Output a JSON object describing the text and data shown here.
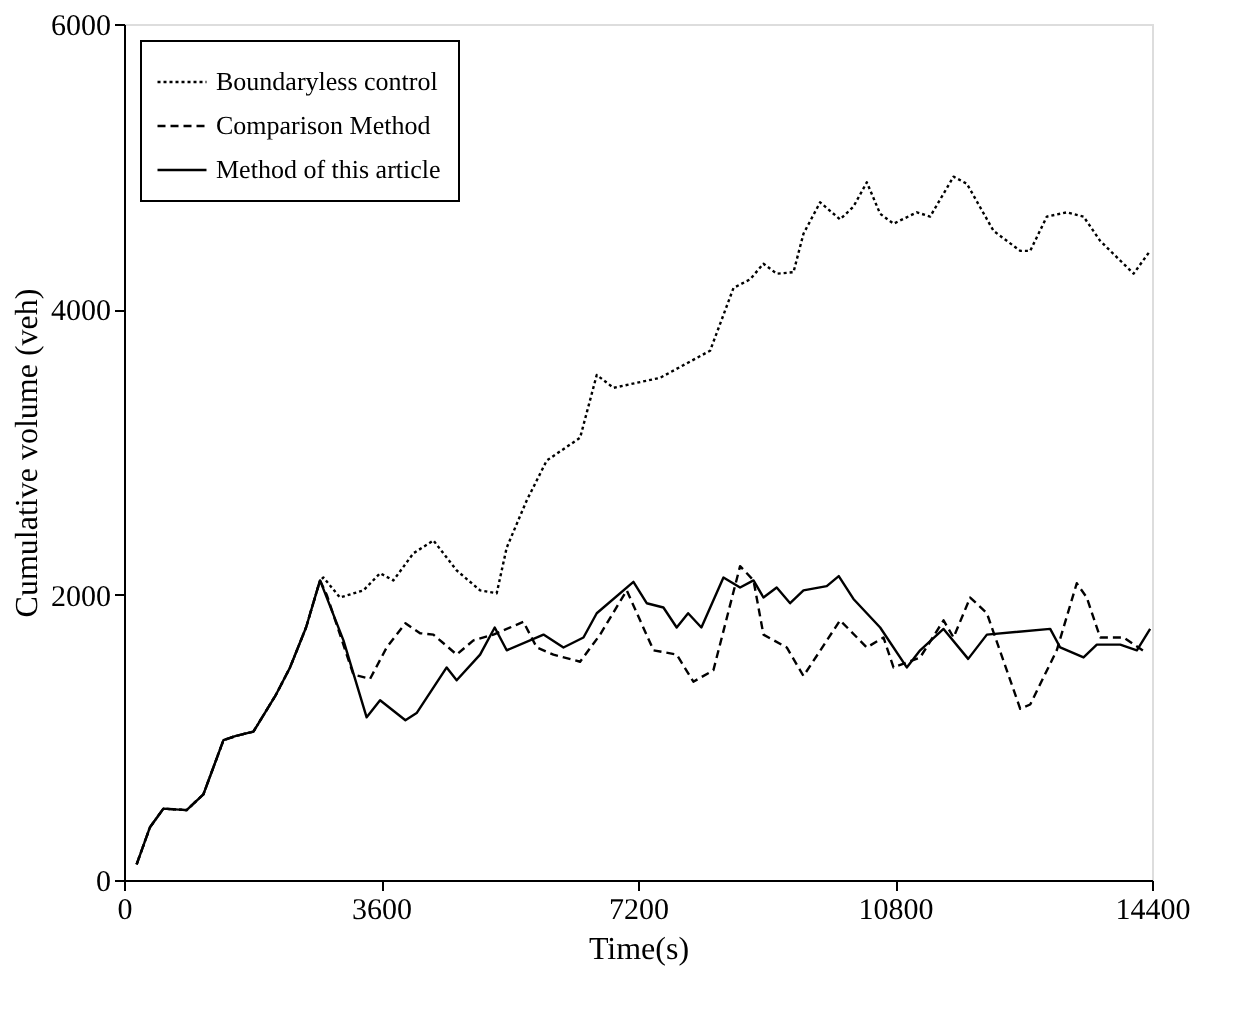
{
  "chart_data": {
    "type": "line",
    "xlabel": "Time(s)",
    "ylabel": "Cumulative volume (veh)",
    "xlim": [
      0,
      14400
    ],
    "xticks": [
      0,
      3600,
      7200,
      10800,
      14400
    ],
    "ylim": [
      0,
      6000
    ],
    "yticks": [
      0,
      2000,
      4000,
      6000
    ],
    "grid": false,
    "legend": "top left",
    "marker": "none",
    "series": [
      {
        "name": "Boundaryless control",
        "color": "#000000",
        "line_style": "dotted",
        "x": [
          177,
          364,
          552,
          877,
          1112,
          1393,
          1569,
          1813,
          2130,
          2326,
          2550,
          2746,
          2794,
          3026,
          3354,
          3587,
          3774,
          4054,
          4334,
          4660,
          4988,
          5221,
          5361,
          5641,
          5921,
          6389,
          6622,
          6856,
          7510,
          8210,
          8538,
          8770,
          8957,
          9143,
          9378,
          9518,
          9751,
          10031,
          10218,
          10405,
          10592,
          10779,
          11106,
          11292,
          11620,
          11807,
          12180,
          12554,
          12694,
          12927,
          13206,
          13441,
          13674,
          14142,
          14374
        ],
        "values": [
          110,
          370,
          500,
          490,
          600,
          980,
          1010,
          1040,
          1300,
          1490,
          1770,
          2100,
          2120,
          1980,
          2030,
          2150,
          2100,
          2290,
          2380,
          2170,
          2030,
          2010,
          2330,
          2660,
          2940,
          3100,
          3540,
          3450,
          3520,
          3710,
          4150,
          4210,
          4320,
          4250,
          4260,
          4530,
          4750,
          4630,
          4720,
          4890,
          4670,
          4600,
          4680,
          4650,
          4930,
          4880,
          4550,
          4410,
          4410,
          4650,
          4680,
          4650,
          4480,
          4250,
          4410
        ]
      },
      {
        "name": "Comparison Method",
        "color": "#000000",
        "line_style": "dashed",
        "x": [
          177,
          364,
          552,
          877,
          1112,
          1393,
          1569,
          1813,
          2130,
          2326,
          2550,
          2746,
          2839,
          3213,
          3447,
          3680,
          3942,
          4147,
          4334,
          4660,
          4895,
          5175,
          5595,
          5781,
          6015,
          6389,
          6669,
          7042,
          7417,
          7742,
          7976,
          8256,
          8630,
          8818,
          8957,
          9284,
          9518,
          10031,
          10405,
          10639,
          10779,
          11152,
          11480,
          11620,
          11853,
          12087,
          12554,
          12694,
          13066,
          13346,
          13486,
          13674,
          14001,
          14327
        ],
        "values": [
          110,
          370,
          500,
          490,
          600,
          980,
          1010,
          1040,
          1300,
          1490,
          1770,
          2100,
          2000,
          1440,
          1410,
          1630,
          1800,
          1730,
          1720,
          1580,
          1680,
          1720,
          1810,
          1630,
          1580,
          1530,
          1720,
          2030,
          1610,
          1580,
          1390,
          1470,
          2200,
          2100,
          1720,
          1630,
          1430,
          1820,
          1630,
          1700,
          1490,
          1560,
          1820,
          1700,
          1980,
          1870,
          1200,
          1230,
          1610,
          2080,
          1980,
          1700,
          1700,
          1590
        ]
      },
      {
        "name": "Method of this article",
        "color": "#000000",
        "line_style": "solid",
        "x": [
          177,
          364,
          552,
          877,
          1112,
          1393,
          1569,
          1813,
          2130,
          2326,
          2550,
          2746,
          3074,
          3399,
          3587,
          3942,
          4099,
          4520,
          4660,
          4988,
          5193,
          5361,
          5876,
          6156,
          6436,
          6622,
          7136,
          7322,
          7556,
          7742,
          7902,
          8088,
          8397,
          8630,
          8818,
          8957,
          9143,
          9331,
          9518,
          9844,
          10012,
          10218,
          10592,
          10965,
          11152,
          11480,
          11825,
          12087,
          12974,
          13114,
          13441,
          13627,
          13955,
          14188,
          14374
        ],
        "values": [
          110,
          370,
          500,
          490,
          600,
          980,
          1010,
          1040,
          1300,
          1490,
          1770,
          2100,
          1680,
          1140,
          1260,
          1120,
          1170,
          1490,
          1400,
          1580,
          1770,
          1610,
          1720,
          1630,
          1700,
          1870,
          2090,
          1940,
          1910,
          1770,
          1870,
          1770,
          2120,
          2050,
          2100,
          1980,
          2050,
          1940,
          2030,
          2060,
          2130,
          1970,
          1770,
          1490,
          1610,
          1760,
          1550,
          1720,
          1760,
          1630,
          1560,
          1650,
          1650,
          1610,
          1760
        ]
      }
    ]
  }
}
